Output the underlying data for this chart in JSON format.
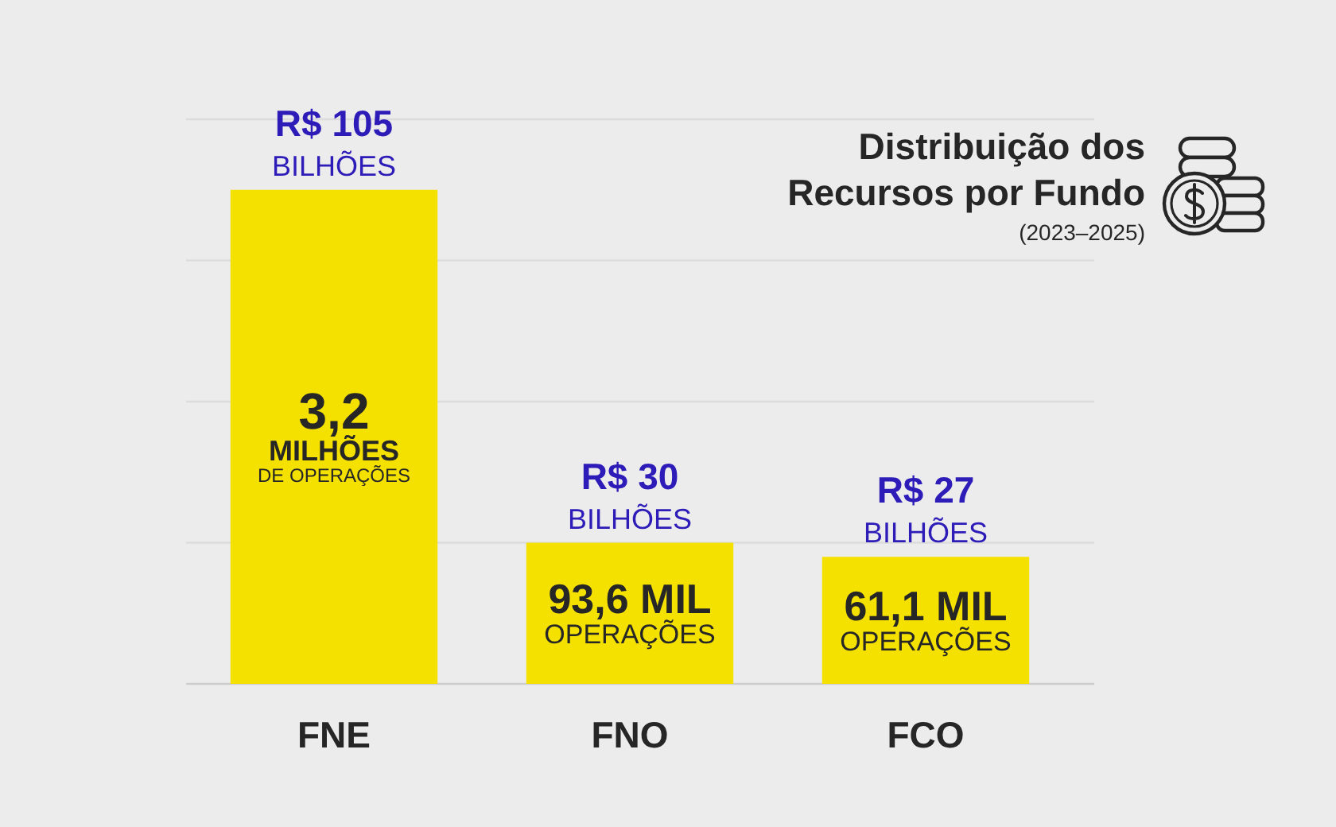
{
  "chart_data": {
    "type": "bar",
    "title": "Distribuição dos\nRecursos por Fundo",
    "subtitle": "(2023–2025)",
    "categories": [
      "FNE",
      "FNO",
      "FCO"
    ],
    "values": [
      105,
      30,
      27
    ],
    "color": "#f5e100",
    "value_labels": [
      "R$ 105\nBILHÕES",
      "R$ 30\nBILHÕES",
      "R$ 27\nBILHÕES"
    ],
    "annotations": [
      "3,2\nMILHÕES\nDE OPERAÇÕES",
      "93,6 MIL\nOPERAÇÕES",
      "61,1 MIL\nOPERAÇÕES"
    ],
    "ylim": [
      0,
      120
    ],
    "yticks": [
      {
        "value": 0,
        "label": null
      },
      {
        "value": 30,
        "label": null
      },
      {
        "value": 60,
        "label": null
      },
      {
        "value": 90,
        "label": null
      },
      {
        "value": 120,
        "label": null
      }
    ],
    "grid": "y",
    "tick_labels": "x"
  }
}
